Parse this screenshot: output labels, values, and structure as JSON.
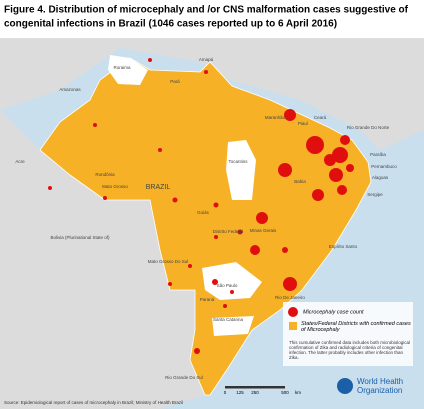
{
  "title_lines": [
    "Figure 4. Distribution of microcephaly and /or CNS malformation cases suggestive of",
    "congenital infections in Brazil (1046 cases reported up to 6 April 2016)"
  ],
  "map_labels": [
    "Roraima",
    "Amapá",
    "Pará",
    "Amazonas",
    "Maranhão",
    "Ceará",
    "Rio Grande Do Norte",
    "Piauí",
    "Paraíba",
    "Pernambuco",
    "Alagoas",
    "Acre",
    "Rondônia",
    "Mato Grosso",
    "BRAZIL",
    "Tocantins",
    "Bahia",
    "Sergipe",
    "Goiás",
    "Distrito Federal",
    "Minas Gerais",
    "Mato Grosso Do Sul",
    "Espírito Santo",
    "São Paulo",
    "Rio De Janeiro",
    "Paraná",
    "Santa Catarina",
    "Rio Grande Do Sul",
    "Bolivia (Plurinational State of)"
  ],
  "legend": [
    "Microcephaly case count",
    "States/Federal Districts with confirmed cases of Microcephaly"
  ],
  "note": "This cumulative confirmed data includes both microbiological confirmation of Zika and radiological criteria of congenital infection. The latter probably includes other infection than Zika.",
  "scale_labels": [
    "0",
    "125",
    "250",
    "500",
    "km"
  ],
  "source": "Source: Epidemiological report of cases of microcephaly in Brazil; Ministry of Health Brazil",
  "organization": [
    "World Health",
    "Organization"
  ]
}
